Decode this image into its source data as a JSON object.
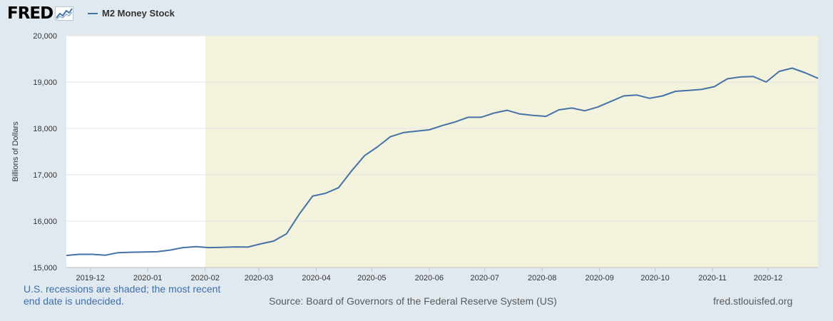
{
  "header": {
    "logo_text": "FRED",
    "logo_icon": "line-chart-icon",
    "legend_label": "M2 Money Stock"
  },
  "chart_data": {
    "type": "line",
    "ylabel": "Billions of Dollars",
    "ylim": [
      15000,
      20000
    ],
    "yticks": [
      15000,
      16000,
      17000,
      18000,
      19000,
      20000
    ],
    "ytick_labels": [
      "15,000",
      "16,000",
      "17,000",
      "18,000",
      "19,000",
      "20,000"
    ],
    "xlim": [
      "2019-11-18",
      "2020-12-28"
    ],
    "xtick_labels": [
      "2019-12",
      "2020-01",
      "2020-02",
      "2020-03",
      "2020-04",
      "2020-05",
      "2020-06",
      "2020-07",
      "2020-08",
      "2020-09",
      "2020-10",
      "2020-11",
      "2020-12"
    ],
    "recession": {
      "start": "2020-02-01",
      "end": "2020-12-28",
      "color": "#f3f3dd"
    },
    "grid": true,
    "series": [
      {
        "name": "M2 Money Stock",
        "color": "#4572a7",
        "x": [
          "2019-11-18",
          "2019-11-25",
          "2019-12-02",
          "2019-12-09",
          "2019-12-16",
          "2019-12-23",
          "2019-12-30",
          "2020-01-06",
          "2020-01-13",
          "2020-01-20",
          "2020-01-27",
          "2020-02-03",
          "2020-02-10",
          "2020-02-17",
          "2020-02-24",
          "2020-03-02",
          "2020-03-09",
          "2020-03-16",
          "2020-03-23",
          "2020-03-30",
          "2020-04-06",
          "2020-04-13",
          "2020-04-20",
          "2020-04-27",
          "2020-05-04",
          "2020-05-11",
          "2020-05-18",
          "2020-05-25",
          "2020-06-01",
          "2020-06-08",
          "2020-06-15",
          "2020-06-22",
          "2020-06-29",
          "2020-07-06",
          "2020-07-13",
          "2020-07-20",
          "2020-07-27",
          "2020-08-03",
          "2020-08-10",
          "2020-08-17",
          "2020-08-24",
          "2020-08-31",
          "2020-09-07",
          "2020-09-14",
          "2020-09-21",
          "2020-09-28",
          "2020-10-05",
          "2020-10-12",
          "2020-10-19",
          "2020-10-26",
          "2020-11-02",
          "2020-11-09",
          "2020-11-16",
          "2020-11-23",
          "2020-11-30",
          "2020-12-07",
          "2020-12-14",
          "2020-12-21",
          "2020-12-28"
        ],
        "y": [
          15260,
          15285,
          15285,
          15265,
          15320,
          15330,
          15335,
          15340,
          15375,
          15430,
          15450,
          15430,
          15435,
          15445,
          15440,
          15510,
          15570,
          15730,
          16160,
          16540,
          16600,
          16720,
          17080,
          17410,
          17600,
          17820,
          17910,
          17940,
          17970,
          18060,
          18140,
          18240,
          18240,
          18330,
          18390,
          18310,
          18280,
          18260,
          18400,
          18440,
          18380,
          18460,
          18580,
          18700,
          18720,
          18650,
          18700,
          18800,
          18820,
          18840,
          18900,
          19070,
          19110,
          19120,
          19000,
          19230,
          19300,
          19200,
          19080
        ]
      }
    ]
  },
  "footer": {
    "note": "U.S. recessions are shaded; the most recent end date is undecided.",
    "source": "Source: Board of Governors of the Federal Reserve System (US)",
    "site": "fred.stlouisfed.org"
  }
}
